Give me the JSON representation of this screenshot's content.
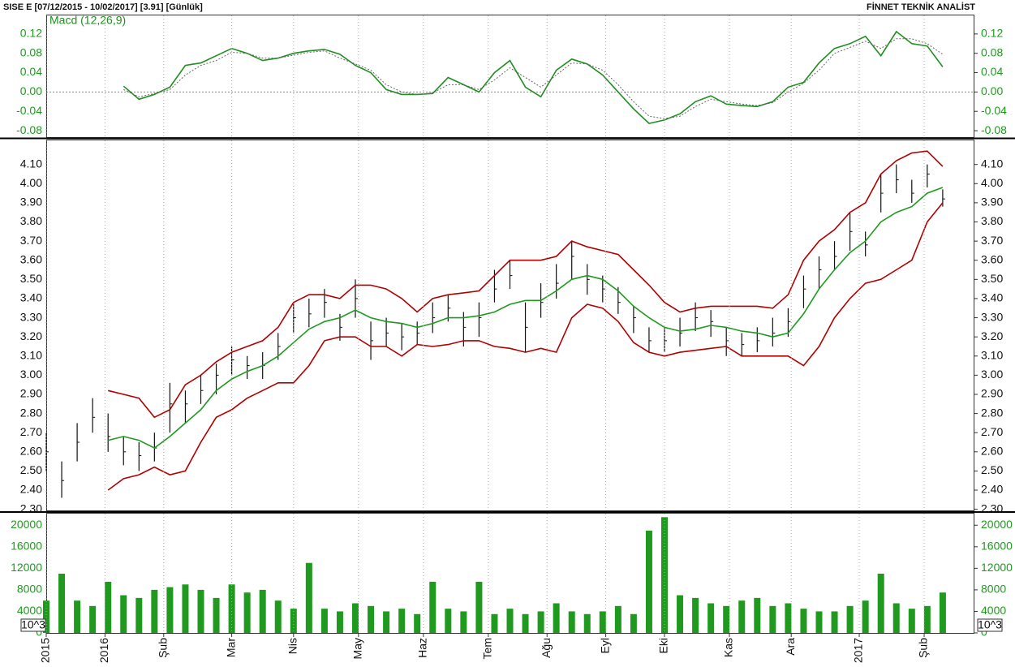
{
  "header": {
    "left": "SISE  E  [07/12/2015 - 10/02/2017]  [3.91]  [Günlük]",
    "right": "FİNNET TEKNİK ANALİST"
  },
  "chart_data": [
    {
      "type": "line",
      "legend": "top-left",
      "x": [
        0,
        5,
        10,
        15,
        20,
        25,
        30,
        35,
        40,
        45,
        50,
        55,
        60,
        65,
        70,
        75,
        80,
        85,
        90,
        95,
        100,
        105,
        110,
        115,
        120,
        125,
        130,
        135,
        140,
        145,
        150,
        155,
        160,
        165,
        170,
        175,
        180,
        185,
        190,
        195,
        200,
        205,
        210,
        215,
        220,
        225,
        230,
        235,
        240,
        245,
        250,
        255,
        260,
        265,
        270,
        275,
        280,
        285,
        290
      ],
      "xlim": [
        0,
        300
      ],
      "ylim": [
        -0.095,
        0.16
      ],
      "yticks": [
        0.12,
        0.08,
        0.04,
        {
          "value": 0,
          "label": "0.00"
        },
        -0.04,
        -0.08
      ],
      "zero_line": true,
      "series": [
        {
          "name": "Macd (12,26,9)",
          "color": "#1f8f1f",
          "values": [
            null,
            null,
            null,
            null,
            null,
            0.012,
            -0.015,
            -0.005,
            0.01,
            0.055,
            0.06,
            0.075,
            0.09,
            0.08,
            0.065,
            0.07,
            0.08,
            0.085,
            0.088,
            0.078,
            0.055,
            0.04,
            0.005,
            -0.005,
            -0.005,
            -0.003,
            0.03,
            0.015,
            0,
            0.04,
            0.065,
            0.01,
            -0.01,
            0.045,
            0.068,
            0.058,
            0.035,
            0,
            -0.035,
            -0.065,
            -0.058,
            -0.045,
            -0.02,
            -0.008,
            -0.025,
            -0.028,
            -0.03,
            -0.02,
            0.01,
            0.02,
            0.06,
            0.09,
            0.1,
            0.115,
            0.075,
            0.125,
            0.1,
            0.095,
            0.052
          ]
        },
        {
          "color": "#666666",
          "dashed": true,
          "values": [
            null,
            null,
            null,
            null,
            null,
            0.005,
            -0.01,
            -0.003,
            0.005,
            0.035,
            0.055,
            0.065,
            0.082,
            0.08,
            0.07,
            0.07,
            0.076,
            0.082,
            0.085,
            0.07,
            0.058,
            0.045,
            0.015,
            0,
            -0.005,
            -0.002,
            0.015,
            0.015,
            0.005,
            0.025,
            0.05,
            0.03,
            0.01,
            0.035,
            0.06,
            0.058,
            0.045,
            0.015,
            -0.02,
            -0.05,
            -0.055,
            -0.05,
            -0.03,
            -0.015,
            -0.02,
            -0.025,
            -0.028,
            -0.022,
            0,
            0.018,
            0.045,
            0.08,
            0.092,
            0.105,
            0.09,
            0.11,
            0.11,
            0.1,
            0.078
          ]
        }
      ]
    },
    {
      "type": "hlc",
      "x": [
        0,
        5,
        10,
        15,
        20,
        25,
        30,
        35,
        40,
        45,
        50,
        55,
        60,
        65,
        70,
        75,
        80,
        85,
        90,
        95,
        100,
        105,
        110,
        115,
        120,
        125,
        130,
        135,
        140,
        145,
        150,
        155,
        160,
        165,
        170,
        175,
        180,
        185,
        190,
        195,
        200,
        205,
        210,
        215,
        220,
        225,
        230,
        235,
        240,
        245,
        250,
        255,
        260,
        265,
        270,
        275,
        280,
        285,
        290
      ],
      "xlim": [
        0,
        300
      ],
      "ylim": [
        2.29,
        4.23
      ],
      "color": "#111111",
      "yticks": [
        {
          "value": 4.1,
          "label": "4.10"
        },
        {
          "value": 4.0,
          "label": "4.00"
        },
        {
          "value": 3.9,
          "label": "3.90"
        },
        {
          "value": 3.8,
          "label": "3.80"
        },
        {
          "value": 3.7,
          "label": "3.70"
        },
        {
          "value": 3.6,
          "label": "3.60"
        },
        {
          "value": 3.5,
          "label": "3.50"
        },
        {
          "value": 3.4,
          "label": "3.40"
        },
        {
          "value": 3.3,
          "label": "3.30"
        },
        {
          "value": 3.2,
          "label": "3.20"
        },
        {
          "value": 3.1,
          "label": "3.10"
        },
        {
          "value": 3.0,
          "label": "3.00"
        },
        {
          "value": 2.9,
          "label": "2.90"
        },
        {
          "value": 2.8,
          "label": "2.80"
        },
        {
          "value": 2.7,
          "label": "2.70"
        },
        {
          "value": 2.6,
          "label": "2.60"
        },
        {
          "value": 2.5,
          "label": "2.50"
        },
        {
          "value": 2.4,
          "label": "2.40"
        },
        {
          "value": 2.3,
          "label": "2.30"
        }
      ],
      "high": [
        2.7,
        2.55,
        2.75,
        2.88,
        2.8,
        2.68,
        2.65,
        2.7,
        2.96,
        2.92,
        3.0,
        3.06,
        3.15,
        3.1,
        3.12,
        3.22,
        3.38,
        3.4,
        3.45,
        3.32,
        3.5,
        3.28,
        3.3,
        3.27,
        3.28,
        3.38,
        3.42,
        3.33,
        3.38,
        3.55,
        3.6,
        3.38,
        3.48,
        3.58,
        3.7,
        3.58,
        3.52,
        3.46,
        3.36,
        3.25,
        3.25,
        3.3,
        3.38,
        3.34,
        3.25,
        3.22,
        3.25,
        3.3,
        3.35,
        3.52,
        3.62,
        3.7,
        3.85,
        3.75,
        4.05,
        4.1,
        4.02,
        4.1,
        3.97
      ],
      "low": [
        2.5,
        2.36,
        2.55,
        2.7,
        2.6,
        2.53,
        2.5,
        2.55,
        2.7,
        2.75,
        2.85,
        2.9,
        3.0,
        2.98,
        2.98,
        3.08,
        3.22,
        3.25,
        3.3,
        3.18,
        3.3,
        3.08,
        3.15,
        3.13,
        3.16,
        3.22,
        3.28,
        3.15,
        3.2,
        3.38,
        3.45,
        3.12,
        3.3,
        3.4,
        3.5,
        3.42,
        3.38,
        3.32,
        3.22,
        3.12,
        3.12,
        3.15,
        3.23,
        3.2,
        3.1,
        3.1,
        3.12,
        3.15,
        3.2,
        3.35,
        3.45,
        3.55,
        3.65,
        3.62,
        3.85,
        3.95,
        3.9,
        3.98,
        3.88
      ],
      "close": [
        2.6,
        2.45,
        2.65,
        2.78,
        2.68,
        2.6,
        2.58,
        2.62,
        2.85,
        2.85,
        2.92,
        3.0,
        3.08,
        3.05,
        3.05,
        3.15,
        3.3,
        3.32,
        3.38,
        3.25,
        3.4,
        3.18,
        3.22,
        3.2,
        3.22,
        3.3,
        3.35,
        3.25,
        3.3,
        3.45,
        3.52,
        3.25,
        3.38,
        3.48,
        3.62,
        3.5,
        3.45,
        3.38,
        3.3,
        3.18,
        3.18,
        3.22,
        3.3,
        3.28,
        3.18,
        3.16,
        3.18,
        3.22,
        3.28,
        3.45,
        3.55,
        3.62,
        3.75,
        3.68,
        3.95,
        4.02,
        3.95,
        4.05,
        3.92
      ],
      "series": [
        {
          "color": "#b00000",
          "values": [
            null,
            null,
            null,
            null,
            2.92,
            2.9,
            2.88,
            2.78,
            2.82,
            2.95,
            3.0,
            3.07,
            3.12,
            3.15,
            3.18,
            3.25,
            3.38,
            3.42,
            3.42,
            3.4,
            3.47,
            3.47,
            3.45,
            3.4,
            3.33,
            3.4,
            3.42,
            3.43,
            3.44,
            3.52,
            3.6,
            3.6,
            3.6,
            3.62,
            3.7,
            3.67,
            3.65,
            3.63,
            3.55,
            3.47,
            3.38,
            3.33,
            3.35,
            3.36,
            3.36,
            3.36,
            3.36,
            3.35,
            3.42,
            3.6,
            3.7,
            3.76,
            3.85,
            3.9,
            4.05,
            4.12,
            4.16,
            4.17,
            4.09
          ]
        },
        {
          "color": "#1f9a1f",
          "values": [
            null,
            null,
            null,
            null,
            2.66,
            2.68,
            2.66,
            2.62,
            2.68,
            2.75,
            2.82,
            2.92,
            2.98,
            3.02,
            3.05,
            3.1,
            3.17,
            3.24,
            3.28,
            3.3,
            3.34,
            3.3,
            3.28,
            3.27,
            3.25,
            3.27,
            3.3,
            3.3,
            3.31,
            3.33,
            3.37,
            3.39,
            3.39,
            3.44,
            3.5,
            3.52,
            3.5,
            3.44,
            3.36,
            3.3,
            3.25,
            3.23,
            3.24,
            3.26,
            3.25,
            3.23,
            3.22,
            3.2,
            3.22,
            3.32,
            3.45,
            3.55,
            3.64,
            3.7,
            3.8,
            3.85,
            3.88,
            3.95,
            3.98
          ]
        },
        {
          "color": "#b00000",
          "values": [
            null,
            null,
            null,
            null,
            2.4,
            2.46,
            2.48,
            2.52,
            2.48,
            2.5,
            2.65,
            2.78,
            2.82,
            2.88,
            2.92,
            2.96,
            2.96,
            3.05,
            3.18,
            3.2,
            3.2,
            3.15,
            3.15,
            3.1,
            3.16,
            3.15,
            3.16,
            3.18,
            3.18,
            3.15,
            3.14,
            3.12,
            3.14,
            3.12,
            3.3,
            3.37,
            3.35,
            3.28,
            3.17,
            3.12,
            3.1,
            3.12,
            3.13,
            3.14,
            3.15,
            3.1,
            3.1,
            3.1,
            3.1,
            3.05,
            3.15,
            3.3,
            3.4,
            3.48,
            3.5,
            3.55,
            3.6,
            3.8,
            3.9
          ]
        }
      ]
    },
    {
      "type": "bar",
      "color": "#1f9a1f",
      "unit": "10^3",
      "x": [
        0,
        5,
        10,
        15,
        20,
        25,
        30,
        35,
        40,
        45,
        50,
        55,
        60,
        65,
        70,
        75,
        80,
        85,
        90,
        95,
        100,
        105,
        110,
        115,
        120,
        125,
        130,
        135,
        140,
        145,
        150,
        155,
        160,
        165,
        170,
        175,
        180,
        185,
        190,
        195,
        200,
        205,
        210,
        215,
        220,
        225,
        230,
        235,
        240,
        245,
        250,
        255,
        260,
        265,
        270,
        275,
        280,
        285,
        290
      ],
      "xlim": [
        0,
        300
      ],
      "ylim": [
        0,
        22300
      ],
      "yticks": [
        20000,
        16000,
        12000,
        8000,
        4000,
        0
      ],
      "xticks": [
        {
          "value": 0,
          "label": "2015"
        },
        {
          "value": 19,
          "label": "2016"
        },
        {
          "value": 38,
          "label": "Şub"
        },
        {
          "value": 60,
          "label": "Mar"
        },
        {
          "value": 80,
          "label": "Nis"
        },
        {
          "value": 101,
          "label": "May"
        },
        {
          "value": 122,
          "label": "Haz"
        },
        {
          "value": 143,
          "label": "Tem"
        },
        {
          "value": 162,
          "label": "Ağu"
        },
        {
          "value": 181,
          "label": "Eyl"
        },
        {
          "value": 200,
          "label": "Eki"
        },
        {
          "value": 221,
          "label": "Kas"
        },
        {
          "value": 241,
          "label": "Ara"
        },
        {
          "value": 263,
          "label": "2017"
        },
        {
          "value": 284,
          "label": "Şub"
        }
      ],
      "values": [
        6000,
        11000,
        6000,
        5000,
        9500,
        7000,
        6500,
        8000,
        8500,
        9000,
        8000,
        6500,
        9000,
        7500,
        8000,
        6000,
        4500,
        13000,
        4500,
        4000,
        5500,
        5000,
        4000,
        4500,
        3500,
        9500,
        4500,
        4000,
        9500,
        3500,
        4500,
        3500,
        4000,
        5500,
        4000,
        3500,
        4000,
        5000,
        3500,
        19000,
        21500,
        7000,
        6500,
        5500,
        5000,
        6000,
        6500,
        5000,
        5500,
        4500,
        4000,
        4000,
        5000,
        6000,
        11000,
        5500,
        4500,
        5000,
        7500
      ]
    }
  ]
}
